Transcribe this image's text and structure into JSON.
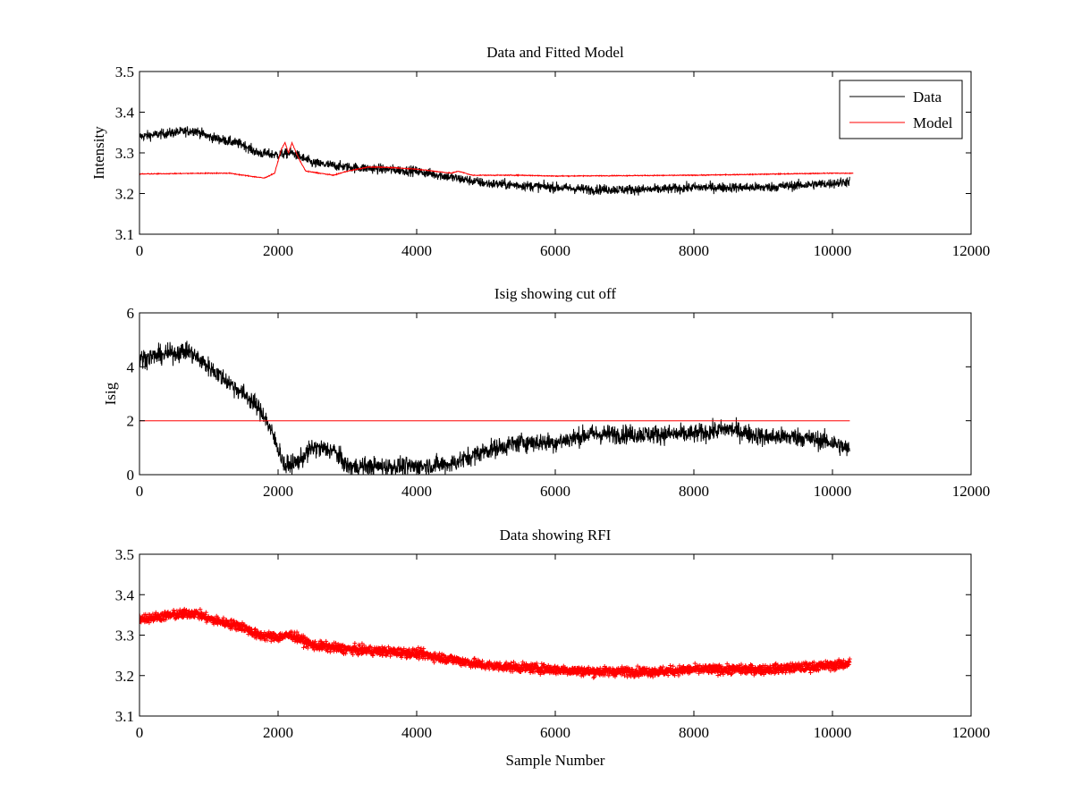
{
  "chart_data": [
    {
      "type": "line",
      "title": "Data and Fitted Model",
      "xlabel": "",
      "ylabel": "Intensity",
      "xlim": [
        0,
        12000
      ],
      "ylim": [
        3.1,
        3.5
      ],
      "xticks": [
        0,
        2000,
        4000,
        6000,
        8000,
        10000,
        12000
      ],
      "yticks": [
        3.1,
        3.2,
        3.3,
        3.4,
        3.5
      ],
      "legend": {
        "placement": "top-right",
        "entries": [
          "Data",
          "Model"
        ]
      },
      "series": [
        {
          "name": "Data",
          "color": "#000000",
          "noise": 0.012,
          "marker": "none",
          "x": [
            0,
            500,
            800,
            1000,
            1500,
            1700,
            2000,
            2200,
            2500,
            3000,
            3500,
            4000,
            4500,
            5000,
            5500,
            6000,
            6500,
            7000,
            7500,
            8000,
            8500,
            9000,
            9500,
            10000,
            10250
          ],
          "y": [
            3.34,
            3.35,
            3.355,
            3.34,
            3.32,
            3.3,
            3.295,
            3.3,
            3.275,
            3.265,
            3.26,
            3.255,
            3.24,
            3.225,
            3.22,
            3.215,
            3.21,
            3.21,
            3.21,
            3.215,
            3.215,
            3.215,
            3.22,
            3.225,
            3.23
          ]
        },
        {
          "name": "Model",
          "color": "#ff0000",
          "noise": 0.001,
          "marker": "none",
          "x": [
            0,
            1000,
            1300,
            1500,
            1800,
            1950,
            2050,
            2100,
            2150,
            2200,
            2300,
            2400,
            2600,
            2800,
            3000,
            3300,
            3500,
            4000,
            4500,
            4600,
            4800,
            5500,
            6000,
            8000,
            10000,
            10300
          ],
          "y": [
            3.248,
            3.25,
            3.25,
            3.245,
            3.238,
            3.25,
            3.31,
            3.325,
            3.3,
            3.325,
            3.285,
            3.255,
            3.25,
            3.245,
            3.255,
            3.265,
            3.265,
            3.26,
            3.25,
            3.255,
            3.245,
            3.245,
            3.243,
            3.245,
            3.25,
            3.25
          ]
        }
      ]
    },
    {
      "type": "line",
      "title": "Isig showing cut off",
      "xlabel": "",
      "ylabel": "Isig",
      "xlim": [
        0,
        12000
      ],
      "ylim": [
        0,
        6
      ],
      "xticks": [
        0,
        2000,
        4000,
        6000,
        8000,
        10000,
        12000
      ],
      "yticks": [
        0,
        2,
        4,
        6
      ],
      "series": [
        {
          "name": "Isig",
          "color": "#000000",
          "noise": 0.35,
          "marker": "none",
          "x": [
            0,
            700,
            1000,
            1300,
            1600,
            1800,
            2000,
            2100,
            2300,
            2500,
            2800,
            3000,
            3500,
            4000,
            4500,
            5000,
            5500,
            6000,
            6500,
            7000,
            8000,
            8500,
            9000,
            9500,
            10000,
            10250
          ],
          "y": [
            4.3,
            4.6,
            4.0,
            3.4,
            2.8,
            2.2,
            1.0,
            0.3,
            0.5,
            1.0,
            0.9,
            0.3,
            0.3,
            0.3,
            0.4,
            0.9,
            1.2,
            1.2,
            1.5,
            1.5,
            1.5,
            1.7,
            1.4,
            1.4,
            1.2,
            0.9
          ]
        },
        {
          "name": "Cut off",
          "color": "#ff0000",
          "noise": 0,
          "marker": "none",
          "x": [
            0,
            10250
          ],
          "y": [
            2,
            2
          ]
        }
      ]
    },
    {
      "type": "scatter",
      "title": "Data showing RFI",
      "xlabel": "Sample Number",
      "ylabel": "",
      "xlim": [
        0,
        12000
      ],
      "ylim": [
        3.1,
        3.5
      ],
      "xticks": [
        0,
        2000,
        4000,
        6000,
        8000,
        10000,
        12000
      ],
      "yticks": [
        3.1,
        3.2,
        3.3,
        3.4,
        3.5
      ],
      "series": [
        {
          "name": "RFI",
          "color": "#ff0000",
          "noise": 0.011,
          "marker": "plus",
          "x": [
            0,
            500,
            800,
            1000,
            1500,
            1700,
            2000,
            2200,
            2500,
            3000,
            3500,
            4000,
            4500,
            5000,
            5500,
            6000,
            6500,
            7000,
            7500,
            8000,
            8500,
            9000,
            9500,
            10000,
            10250
          ],
          "y": [
            3.34,
            3.35,
            3.355,
            3.34,
            3.32,
            3.3,
            3.295,
            3.3,
            3.275,
            3.265,
            3.26,
            3.255,
            3.24,
            3.225,
            3.22,
            3.215,
            3.21,
            3.21,
            3.21,
            3.215,
            3.215,
            3.215,
            3.22,
            3.225,
            3.23
          ]
        }
      ]
    }
  ]
}
